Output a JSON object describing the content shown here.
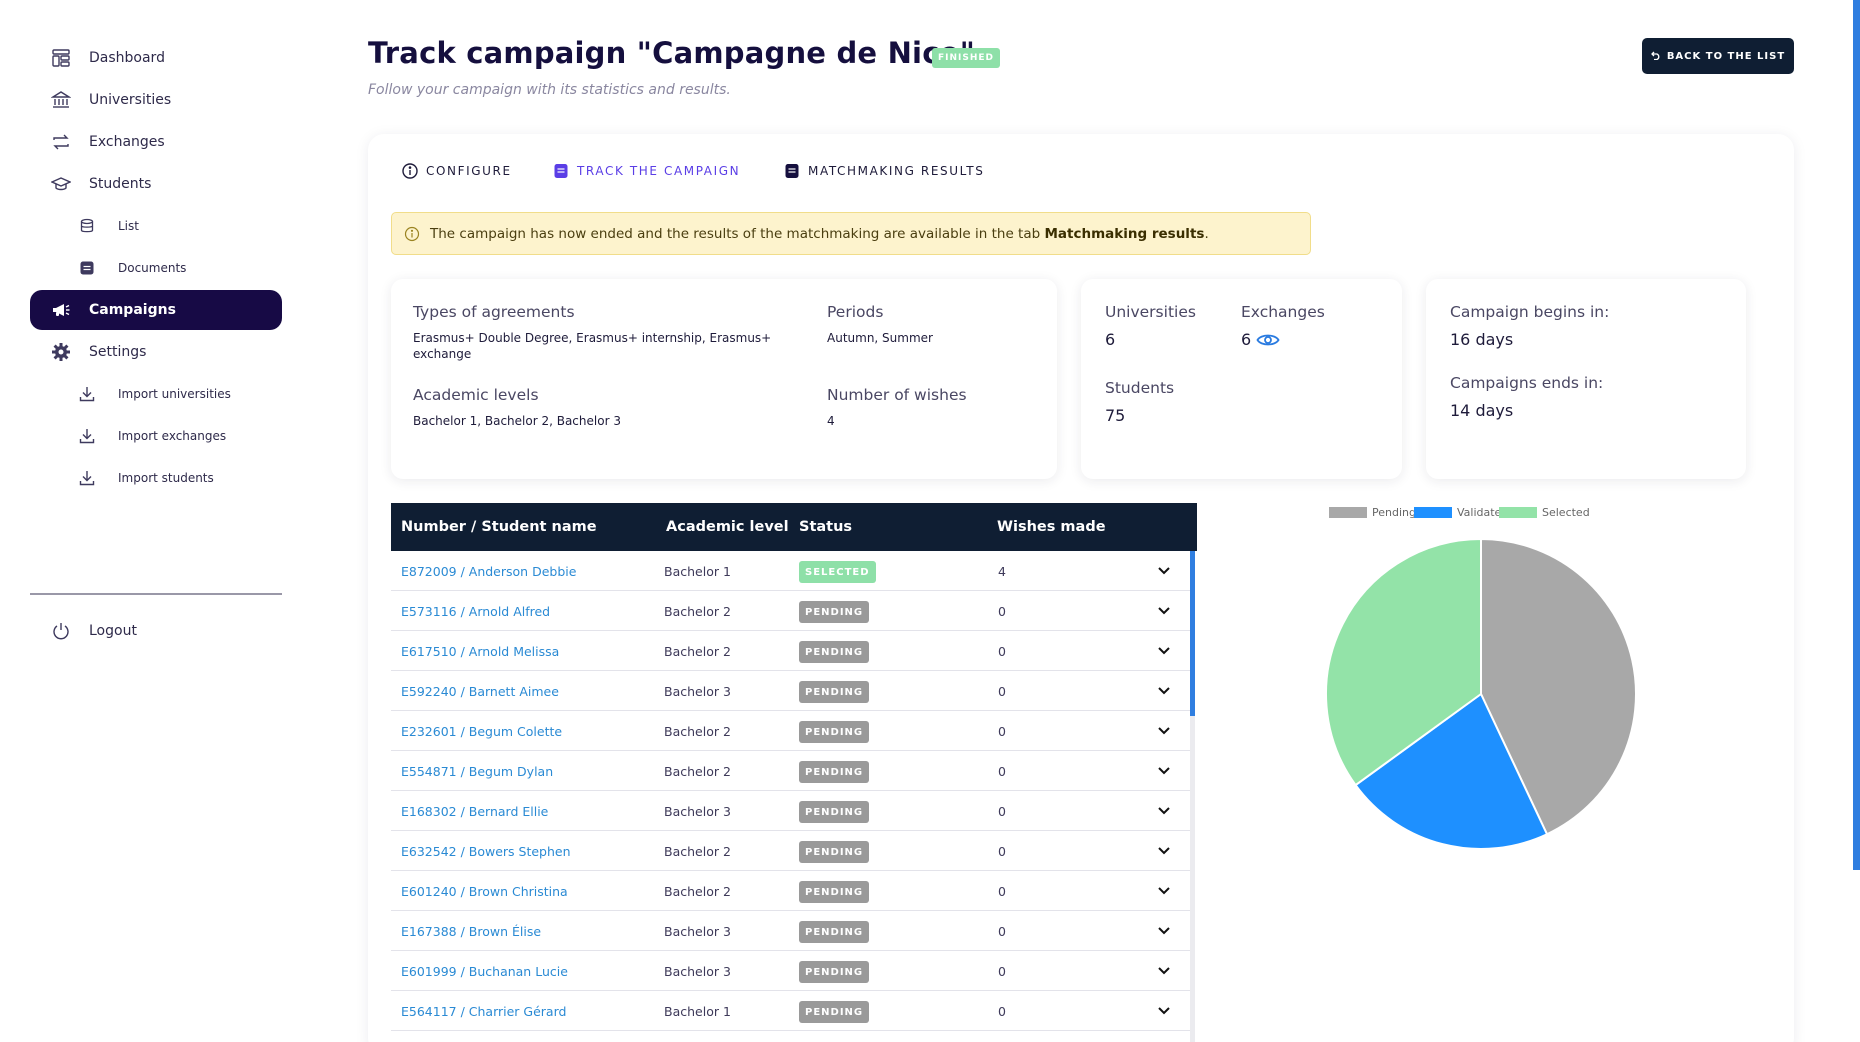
{
  "sidebar": {
    "items": [
      {
        "label": "Dashboard",
        "icon": "dashboard-icon"
      },
      {
        "label": "Universities",
        "icon": "university-icon"
      },
      {
        "label": "Exchanges",
        "icon": "exchange-icon"
      },
      {
        "label": "Students",
        "icon": "graduation-cap-icon"
      },
      {
        "label": "List",
        "icon": "database-icon"
      },
      {
        "label": "Documents",
        "icon": "document-icon"
      },
      {
        "label": "Campaigns",
        "icon": "megaphone-icon"
      },
      {
        "label": "Settings",
        "icon": "gear-icon"
      },
      {
        "label": "Import universities",
        "icon": "download-icon"
      },
      {
        "label": "Import exchanges",
        "icon": "download-icon"
      },
      {
        "label": "Import students",
        "icon": "download-icon"
      },
      {
        "label": "Logout",
        "icon": "power-icon"
      }
    ],
    "active": "Campaigns"
  },
  "header": {
    "title": "Track campaign \"Campagne de Nico\"",
    "status": "FINISHED",
    "subtitle": "Follow your campaign with its statistics and results.",
    "back_label": "BACK TO THE LIST"
  },
  "tabs": [
    {
      "label": "CONFIGURE"
    },
    {
      "label": "TRACK THE CAMPAIGN"
    },
    {
      "label": "MATCHMAKING RESULTS"
    }
  ],
  "alert": {
    "text": "The campaign has now ended and the results of the matchmaking are available in the tab ",
    "link": "Matchmaking results",
    "suffix": "."
  },
  "info": {
    "agreements_label": "Types of agreements",
    "agreements_value": "Erasmus+ Double Degree, Erasmus+ internship, Erasmus+ exchange",
    "periods_label": "Periods",
    "periods_value": "Autumn, Summer",
    "levels_label": "Academic levels",
    "levels_value": "Bachelor 1, Bachelor 2, Bachelor 3",
    "wishes_label": "Number of wishes",
    "wishes_value": "4"
  },
  "stats": {
    "universities_label": "Universities",
    "universities_value": "6",
    "exchanges_label": "Exchanges",
    "exchanges_value": "6",
    "students_label": "Students",
    "students_value": "75"
  },
  "timing": {
    "begins_label": "Campaign begins in:",
    "begins_value": "16 days",
    "ends_label": "Campaigns ends in:",
    "ends_value": "14 days"
  },
  "table": {
    "headers": [
      "Number / Student name",
      "Academic level",
      "Status",
      "Wishes made"
    ],
    "rows": [
      {
        "name": "E872009 / Anderson Debbie",
        "level": "Bachelor 1",
        "status": "SELECTED",
        "wishes": "4"
      },
      {
        "name": "E573116 / Arnold Alfred",
        "level": "Bachelor 2",
        "status": "PENDING",
        "wishes": "0"
      },
      {
        "name": "E617510 / Arnold Melissa",
        "level": "Bachelor 2",
        "status": "PENDING",
        "wishes": "0"
      },
      {
        "name": "E592240 / Barnett Aimee",
        "level": "Bachelor 3",
        "status": "PENDING",
        "wishes": "0"
      },
      {
        "name": "E232601 / Begum Colette",
        "level": "Bachelor 2",
        "status": "PENDING",
        "wishes": "0"
      },
      {
        "name": "E554871 / Begum Dylan",
        "level": "Bachelor 2",
        "status": "PENDING",
        "wishes": "0"
      },
      {
        "name": "E168302 / Bernard Ellie",
        "level": "Bachelor 3",
        "status": "PENDING",
        "wishes": "0"
      },
      {
        "name": "E632542 / Bowers Stephen",
        "level": "Bachelor 2",
        "status": "PENDING",
        "wishes": "0"
      },
      {
        "name": "E601240 / Brown Christina",
        "level": "Bachelor 2",
        "status": "PENDING",
        "wishes": "0"
      },
      {
        "name": "E167388 / Brown Élise",
        "level": "Bachelor 3",
        "status": "PENDING",
        "wishes": "0"
      },
      {
        "name": "E601999 / Buchanan Lucie",
        "level": "Bachelor 3",
        "status": "PENDING",
        "wishes": "0"
      },
      {
        "name": "E564117 / Charrier Gérard",
        "level": "Bachelor 1",
        "status": "PENDING",
        "wishes": "0"
      }
    ]
  },
  "colors": {
    "pending": "#a8a8a8",
    "validated": "#1e90ff",
    "selected": "#93e3a8",
    "active_nav": "#170a45",
    "header_bg": "#0f1e33"
  },
  "chart_data": {
    "type": "pie",
    "legend_position": "top",
    "series": [
      {
        "name": "Pending",
        "value": 43,
        "color": "#a8a8a8"
      },
      {
        "name": "Validated",
        "value": 22,
        "color": "#1e90ff"
      },
      {
        "name": "Selected",
        "value": 35,
        "color": "#93e3a8"
      }
    ]
  }
}
